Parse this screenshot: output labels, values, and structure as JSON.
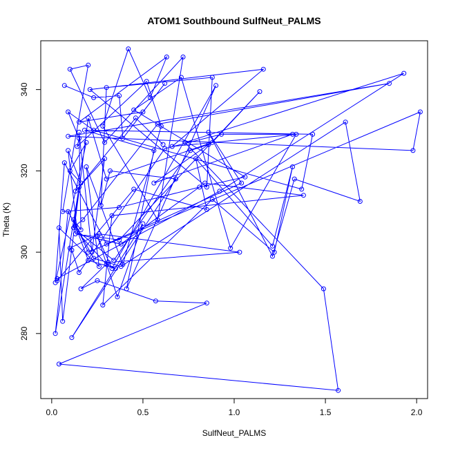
{
  "chart_data": {
    "type": "line",
    "title": "ATOM1 Southbound SulfNeut_PALMS",
    "xlabel": "SulfNeut_PALMS",
    "ylabel": "Theta (K)",
    "xlim": [
      -0.06,
      2.06
    ],
    "ylim": [
      264,
      352
    ],
    "xticks": [
      0.0,
      0.5,
      1.0,
      1.5,
      2.0
    ],
    "xtick_labels": [
      "0.0",
      "0.5",
      "1.0",
      "1.5",
      "2.0"
    ],
    "yticks": [
      280,
      300,
      320,
      340
    ],
    "ytick_labels": [
      "280",
      "300",
      "320",
      "340"
    ],
    "grid": false,
    "legend": "none",
    "color": "#0000ff",
    "series": [
      {
        "marker": "open-circle",
        "points": [
          [
            0.07,
            341
          ],
          [
            0.23,
            338
          ],
          [
            0.37,
            338.5
          ],
          [
            0.39,
            328
          ],
          [
            0.62,
            341.5
          ],
          [
            0.5,
            334.5
          ],
          [
            0.15,
            332
          ],
          [
            0.63,
            348
          ],
          [
            0.54,
            338
          ],
          [
            0.42,
            350
          ],
          [
            0.28,
            331
          ],
          [
            0.58,
            308
          ],
          [
            0.72,
            348
          ],
          [
            0.29,
            327
          ],
          [
            0.1,
            345
          ],
          [
            0.2,
            346
          ],
          [
            0.06,
            310
          ],
          [
            0.37,
            311
          ],
          [
            0.81,
            316
          ],
          [
            1.06,
            318.5
          ],
          [
            0.45,
            335
          ],
          [
            0.71,
            343
          ],
          [
            0.98,
            301
          ],
          [
            1.34,
            329
          ],
          [
            0.66,
            326
          ],
          [
            1.16,
            345
          ],
          [
            0.21,
            340
          ],
          [
            0.85,
            316
          ],
          [
            0.88,
            343
          ],
          [
            0.3,
            340.5
          ],
          [
            0.27,
            311.5
          ],
          [
            0.32,
            320
          ],
          [
            0.68,
            318
          ],
          [
            0.11,
            279
          ],
          [
            0.5,
            307
          ],
          [
            0.36,
            289
          ],
          [
            0.25,
            304
          ],
          [
            0.33,
            296
          ],
          [
            0.9,
            341
          ],
          [
            0.41,
            291
          ],
          [
            0.56,
            325
          ],
          [
            0.18,
            330
          ],
          [
            1.43,
            329
          ],
          [
            1.37,
            315.5
          ],
          [
            0.23,
            330
          ],
          [
            0.09,
            334.5
          ],
          [
            0.15,
            328
          ],
          [
            0.14,
            326
          ],
          [
            0.52,
            342
          ],
          [
            0.6,
            331
          ],
          [
            0.39,
            297
          ],
          [
            0.19,
            321
          ],
          [
            0.26,
            296.5
          ],
          [
            0.04,
            306
          ],
          [
            0.06,
            283
          ],
          [
            0.2,
            333
          ],
          [
            0.3,
            318
          ],
          [
            0.88,
            327
          ],
          [
            1.14,
            339.5
          ],
          [
            0.37,
            303
          ],
          [
            0.13,
            304.5
          ],
          [
            0.38,
            302
          ],
          [
            0.84,
            317
          ],
          [
            1.38,
            314
          ],
          [
            0.33,
            309
          ],
          [
            0.28,
            287
          ],
          [
            0.88,
            313
          ],
          [
            1.22,
            300
          ],
          [
            1.32,
            321
          ],
          [
            1.21,
            301.5
          ],
          [
            0.79,
            323
          ],
          [
            0.85,
            310.5
          ],
          [
            0.45,
            315.5
          ],
          [
            0.03,
            293
          ],
          [
            0.03,
            293.5
          ],
          [
            0.92,
            315
          ],
          [
            1.93,
            344
          ],
          [
            0.73,
            327
          ],
          [
            1.49,
            291
          ],
          [
            1.57,
            266
          ],
          [
            0.04,
            272.5
          ],
          [
            0.85,
            287.5
          ],
          [
            0.57,
            288
          ],
          [
            0.25,
            293
          ],
          [
            0.16,
            291
          ],
          [
            0.31,
            297.5
          ],
          [
            1.03,
            300
          ],
          [
            0.26,
            304.5
          ],
          [
            0.1,
            301
          ],
          [
            0.11,
            300.5
          ],
          [
            0.15,
            295
          ],
          [
            0.62,
            325.5
          ],
          [
            0.93,
            329
          ],
          [
            1.32,
            329
          ],
          [
            0.56,
            317
          ],
          [
            0.86,
            326.5
          ],
          [
            0.76,
            325
          ],
          [
            0.34,
            298
          ],
          [
            0.12,
            306
          ],
          [
            0.15,
            316
          ],
          [
            0.02,
            280
          ],
          [
            0.09,
            310
          ],
          [
            0.23,
            298.5
          ],
          [
            0.38,
            296.5
          ],
          [
            1.61,
            332
          ],
          [
            1.69,
            312.5
          ],
          [
            1.33,
            318
          ],
          [
            1.21,
            299
          ],
          [
            0.86,
            329.5
          ],
          [
            1.04,
            317
          ],
          [
            0.3,
            302
          ],
          [
            0.07,
            322
          ],
          [
            0.02,
            292.5
          ],
          [
            0.19,
            327
          ],
          [
            0.1,
            320
          ],
          [
            0.16,
            317
          ],
          [
            0.09,
            325
          ],
          [
            0.14,
            305
          ],
          [
            0.3,
            297
          ],
          [
            0.35,
            296
          ],
          [
            0.2,
            298
          ],
          [
            0.13,
            306.5
          ],
          [
            0.17,
            308
          ],
          [
            0.58,
            331.5
          ],
          [
            1.85,
            341.5
          ],
          [
            0.09,
            328.5
          ],
          [
            1.98,
            325
          ],
          [
            2.02,
            334.5
          ],
          [
            0.2,
            300
          ],
          [
            0.12,
            308
          ],
          [
            0.16,
            305.5
          ],
          [
            0.15,
            329.5
          ],
          [
            0.22,
            300
          ],
          [
            0.29,
            323
          ],
          [
            0.13,
            315
          ],
          [
            0.46,
            333
          ],
          [
            0.61,
            326.5
          ]
        ]
      }
    ]
  }
}
